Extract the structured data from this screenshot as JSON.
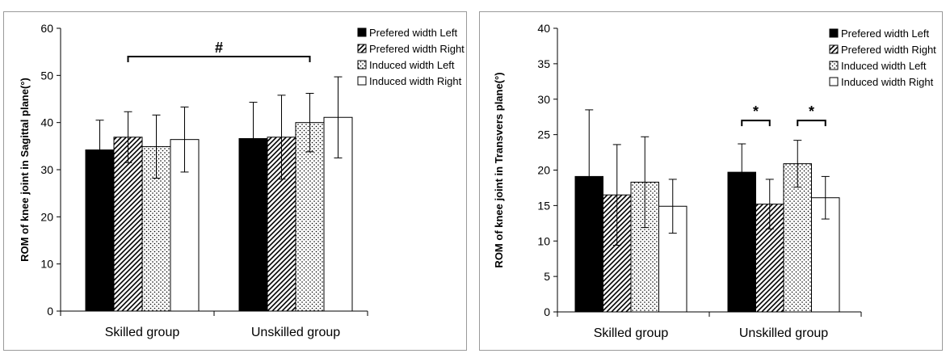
{
  "chart_data": [
    {
      "type": "bar",
      "ylabel": "ROM of knee joint in Sagittal plane(°)",
      "ylim": [
        0,
        60
      ],
      "yticks": [
        0,
        10,
        20,
        30,
        40,
        50,
        60
      ],
      "categories": [
        "Skilled group",
        "Unskilled group"
      ],
      "legend_position": "top-right",
      "series": [
        {
          "name": "Prefered width Left",
          "pattern": "solid",
          "values": [
            34.2,
            36.6
          ],
          "errors": [
            6.3,
            7.7
          ]
        },
        {
          "name": "Prefered width Right",
          "pattern": "hatch",
          "values": [
            36.9,
            36.9
          ],
          "errors": [
            5.4,
            8.9
          ]
        },
        {
          "name": "Induced width Left",
          "pattern": "dots",
          "values": [
            34.9,
            40.0
          ],
          "errors": [
            6.7,
            6.2
          ]
        },
        {
          "name": "Induced width Right",
          "pattern": "empty",
          "values": [
            36.4,
            41.1
          ],
          "errors": [
            6.9,
            8.6
          ]
        }
      ],
      "annotations": [
        {
          "label": "#",
          "from": {
            "group": 0,
            "series": 1
          },
          "to": {
            "group": 1,
            "series": 2
          },
          "y": 54
        }
      ]
    },
    {
      "type": "bar",
      "ylabel": "ROM of knee  joint in Transvers plane(°)",
      "ylim": [
        0,
        40
      ],
      "yticks": [
        0,
        5,
        10,
        15,
        20,
        25,
        30,
        35,
        40
      ],
      "categories": [
        "Skilled group",
        "Unskilled group"
      ],
      "legend_position": "top-right",
      "series": [
        {
          "name": "Prefered width Left",
          "pattern": "solid",
          "values": [
            19.1,
            19.7
          ],
          "errors": [
            9.4,
            4.0
          ]
        },
        {
          "name": "Prefered width Right",
          "pattern": "hatch",
          "values": [
            16.5,
            15.2
          ],
          "errors": [
            7.1,
            3.5
          ]
        },
        {
          "name": "Induced width Left",
          "pattern": "dots",
          "values": [
            18.3,
            20.9
          ],
          "errors": [
            6.4,
            3.3
          ]
        },
        {
          "name": "Induced width Right",
          "pattern": "empty",
          "values": [
            14.9,
            16.1
          ],
          "errors": [
            3.8,
            3.0
          ]
        }
      ],
      "annotations": [
        {
          "label": "*",
          "from": {
            "group": 1,
            "series": 0
          },
          "to": {
            "group": 1,
            "series": 1
          },
          "y": 27
        },
        {
          "label": "*",
          "from": {
            "group": 1,
            "series": 2
          },
          "to": {
            "group": 1,
            "series": 3
          },
          "y": 27
        }
      ]
    }
  ]
}
